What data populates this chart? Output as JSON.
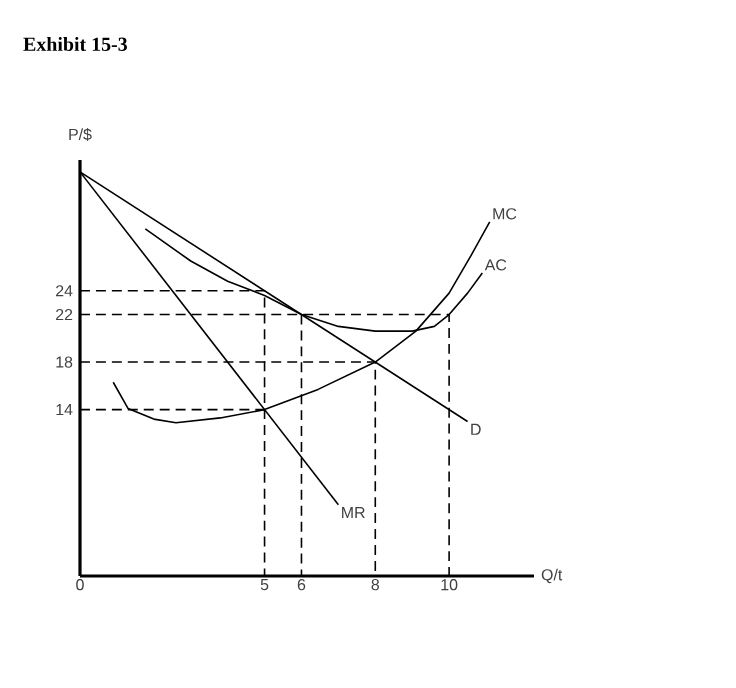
{
  "chart_data": {
    "type": "line",
    "title": "Exhibit 15-3",
    "xlabel": "Q/t",
    "ylabel": "P/$",
    "xlim": [
      0,
      12.3
    ],
    "ylim": [
      0,
      35
    ],
    "xticks": [
      0,
      5,
      6,
      8,
      10
    ],
    "yticks": [
      14,
      18,
      22,
      24
    ],
    "series": [
      {
        "name": "MC",
        "color": "#000000",
        "line_style": "solid",
        "x": [
          0.9,
          1.3,
          2,
          2.6,
          3.8,
          5,
          6.45,
          8,
          9.1,
          10,
          10.6,
          11.1
        ],
        "values": [
          16.3,
          14.1,
          13.2,
          12.9,
          13.3,
          14,
          15.7,
          18,
          20.6,
          23.8,
          27,
          29.8
        ]
      },
      {
        "name": "AC",
        "color": "#000000",
        "line_style": "solid",
        "x": [
          1.77,
          3,
          4,
          5,
          6,
          7,
          8,
          9,
          9.6,
          10,
          10.5,
          10.9
        ],
        "values": [
          29.2,
          26.5,
          24.8,
          23.6,
          22,
          21,
          20.6,
          20.6,
          21,
          22,
          23.8,
          25.5
        ]
      },
      {
        "name": "D",
        "color": "#000000",
        "line_style": "solid",
        "x": [
          0,
          10.5
        ],
        "values": [
          34,
          13
        ]
      },
      {
        "name": "MR",
        "color": "#000000",
        "line_style": "solid",
        "x": [
          0,
          7
        ],
        "values": [
          34,
          6
        ]
      },
      {
        "color": "#000000",
        "line_style": "dashed",
        "x": [
          0,
          5,
          5
        ],
        "values": [
          24,
          24,
          0
        ]
      },
      {
        "color": "#000000",
        "line_style": "dashed",
        "x": [
          0,
          10,
          10
        ],
        "values": [
          22,
          22,
          0
        ]
      },
      {
        "color": "#000000",
        "line_style": "dashed",
        "x": [
          6,
          6
        ],
        "values": [
          22,
          0
        ]
      },
      {
        "color": "#000000",
        "line_style": "dashed",
        "x": [
          0,
          8,
          8
        ],
        "values": [
          18,
          18,
          0
        ]
      },
      {
        "color": "#000000",
        "line_style": "dashed",
        "x": [
          0,
          5
        ],
        "values": [
          14,
          14
        ]
      }
    ]
  }
}
